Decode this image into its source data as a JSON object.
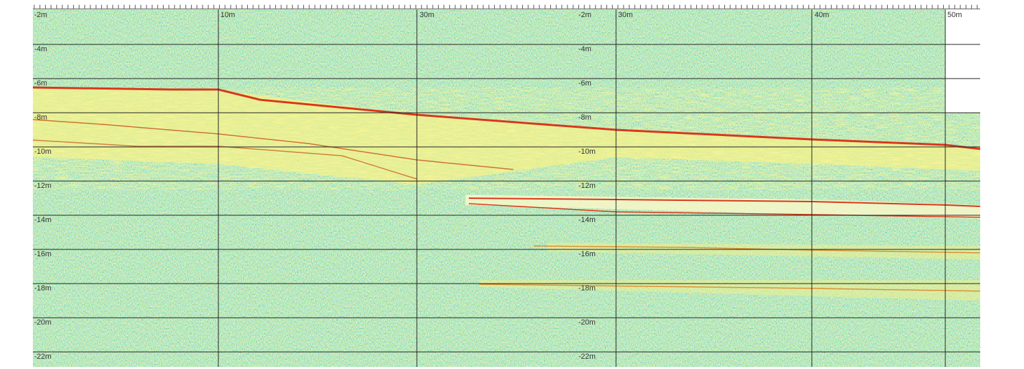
{
  "distance_labels": [
    "-2m",
    "10m",
    "30m",
    "-2m",
    "30m",
    "40m",
    "50m"
  ],
  "left_depth_labels": [
    "-4m",
    "-6m",
    "-8m",
    "-10m",
    "-12m",
    "-14m",
    "-16m",
    "-18m",
    "-20m",
    "-22m"
  ],
  "mid_depth_labels": [
    "-4m",
    "-6m",
    "-8m",
    "-10m",
    "-12m",
    "-14m",
    "-16m",
    "-18m",
    "-20m",
    "-22m"
  ]
}
